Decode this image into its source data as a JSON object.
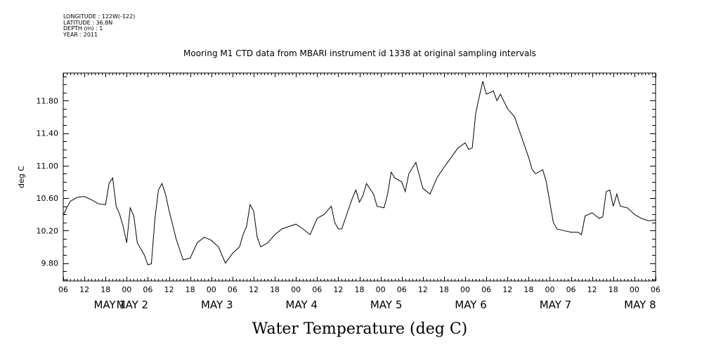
{
  "header": {
    "longitude": "LONGITUDE : 122W(-122)",
    "latitude": "LATITUDE : 36.8N",
    "depth": "DEPTH (m) : 1",
    "year": "YEAR : 2011"
  },
  "chart_data": {
    "type": "line",
    "title": "Mooring M1 CTD data from MBARI instrument id 1338 at original sampling intervals",
    "xlabel": "Water Temperature (deg C)",
    "ylabel": "deg C",
    "ylim": [
      9.58,
      12.14
    ],
    "xlim": [
      "2011-05-01T06:00",
      "2011-05-08T06:00"
    ],
    "yticks": [
      "9.80",
      "10.20",
      "10.60",
      "11.00",
      "11.40",
      "11.80"
    ],
    "xtick_hours": [
      "06",
      "12",
      "18",
      "00",
      "06",
      "12",
      "18",
      "00",
      "06",
      "12",
      "18",
      "00",
      "06",
      "12",
      "18",
      "00",
      "06",
      "12",
      "18",
      "00",
      "06",
      "12",
      "18",
      "00",
      "06",
      "12",
      "18",
      "00",
      "06"
    ],
    "day_labels": [
      "MAY 1",
      "MAY 2",
      "MAY 3",
      "MAY 4",
      "MAY 5",
      "MAY 6",
      "MAY 7",
      "MAY 8"
    ],
    "grid": false,
    "series": [
      {
        "x": [
          "2011-05-01T06:00",
          "2011-05-01T07:00",
          "2011-05-01T08:00",
          "2011-05-01T10:00",
          "2011-05-01T12:00",
          "2011-05-01T14:00",
          "2011-05-01T16:00",
          "2011-05-01T18:00",
          "2011-05-01T19:00",
          "2011-05-01T20:00",
          "2011-05-01T21:00",
          "2011-05-01T22:00",
          "2011-05-01T23:00",
          "2011-05-02T00:00",
          "2011-05-02T01:00",
          "2011-05-02T02:00",
          "2011-05-02T03:00",
          "2011-05-02T05:00",
          "2011-05-02T06:00",
          "2011-05-02T07:00",
          "2011-05-02T08:00",
          "2011-05-02T09:00",
          "2011-05-02T10:00",
          "2011-05-02T11:00",
          "2011-05-02T12:00",
          "2011-05-02T14:00",
          "2011-05-02T16:00",
          "2011-05-02T18:00",
          "2011-05-02T20:00",
          "2011-05-02T22:00",
          "2011-05-03T00:00",
          "2011-05-03T02:00",
          "2011-05-03T03:00",
          "2011-05-03T04:00",
          "2011-05-03T06:00",
          "2011-05-03T08:00",
          "2011-05-03T09:00",
          "2011-05-03T10:00",
          "2011-05-03T11:00",
          "2011-05-03T12:00",
          "2011-05-03T13:00",
          "2011-05-03T14:00",
          "2011-05-03T16:00",
          "2011-05-03T18:00",
          "2011-05-03T20:00",
          "2011-05-03T22:00",
          "2011-05-04T00:00",
          "2011-05-04T02:00",
          "2011-05-04T04:00",
          "2011-05-04T06:00",
          "2011-05-04T08:00",
          "2011-05-04T10:00",
          "2011-05-04T11:00",
          "2011-05-04T12:00",
          "2011-05-04T13:00",
          "2011-05-04T14:00",
          "2011-05-04T16:00",
          "2011-05-04T17:00",
          "2011-05-04T18:00",
          "2011-05-04T19:00",
          "2011-05-04T20:00",
          "2011-05-04T22:00",
          "2011-05-04T23:00",
          "2011-05-05T01:00",
          "2011-05-05T02:00",
          "2011-05-05T03:00",
          "2011-05-05T04:00",
          "2011-05-05T06:00",
          "2011-05-05T07:00",
          "2011-05-05T08:00",
          "2011-05-05T10:00",
          "2011-05-05T11:00",
          "2011-05-05T12:00",
          "2011-05-05T14:00",
          "2011-05-05T16:00",
          "2011-05-05T18:00",
          "2011-05-05T20:00",
          "2011-05-05T22:00",
          "2011-05-06T00:00",
          "2011-05-06T01:00",
          "2011-05-06T02:00",
          "2011-05-06T03:00",
          "2011-05-06T04:00",
          "2011-05-06T05:00",
          "2011-05-06T06:00",
          "2011-05-06T07:00",
          "2011-05-06T08:00",
          "2011-05-06T09:00",
          "2011-05-06T10:00",
          "2011-05-06T12:00",
          "2011-05-06T14:00",
          "2011-05-06T16:00",
          "2011-05-06T18:00",
          "2011-05-06T19:00",
          "2011-05-06T20:00",
          "2011-05-06T22:00",
          "2011-05-06T23:00",
          "2011-05-07T01:00",
          "2011-05-07T02:00",
          "2011-05-07T04:00",
          "2011-05-07T06:00",
          "2011-05-07T08:00",
          "2011-05-07T09:00",
          "2011-05-07T10:00",
          "2011-05-07T12:00",
          "2011-05-07T14:00",
          "2011-05-07T15:00",
          "2011-05-07T16:00",
          "2011-05-07T17:00",
          "2011-05-07T18:00",
          "2011-05-07T19:00",
          "2011-05-07T20:00",
          "2011-05-07T22:00",
          "2011-05-08T00:00",
          "2011-05-08T02:00",
          "2011-05-08T04:00",
          "2011-05-08T06:00"
        ],
        "y": [
          10.39,
          10.48,
          10.56,
          10.61,
          10.62,
          10.58,
          10.53,
          10.52,
          10.78,
          10.85,
          10.5,
          10.4,
          10.25,
          10.05,
          10.48,
          10.38,
          10.05,
          9.9,
          9.78,
          9.79,
          10.35,
          10.7,
          10.78,
          10.65,
          10.45,
          10.1,
          9.84,
          9.86,
          10.05,
          10.12,
          10.08,
          10.0,
          9.9,
          9.8,
          9.92,
          10.0,
          10.15,
          10.25,
          10.52,
          10.44,
          10.12,
          10.0,
          10.05,
          10.15,
          10.22,
          10.25,
          10.28,
          10.22,
          10.15,
          10.35,
          10.4,
          10.5,
          10.3,
          10.22,
          10.22,
          10.35,
          10.6,
          10.7,
          10.55,
          10.63,
          10.78,
          10.65,
          10.5,
          10.48,
          10.65,
          10.92,
          10.85,
          10.8,
          10.68,
          10.9,
          11.04,
          10.88,
          10.72,
          10.65,
          10.85,
          10.98,
          11.1,
          11.22,
          11.28,
          11.2,
          11.22,
          11.65,
          11.85,
          12.04,
          11.88,
          11.9,
          11.92,
          11.8,
          11.88,
          11.7,
          11.6,
          11.35,
          11.1,
          10.95,
          10.9,
          10.95,
          10.8,
          10.3,
          10.22,
          10.2,
          10.18,
          10.18,
          10.15,
          10.38,
          10.42,
          10.35,
          10.37,
          10.68,
          10.7,
          10.5,
          10.65,
          10.5,
          10.48,
          10.4,
          10.35,
          10.32,
          10.33
        ]
      }
    ]
  }
}
